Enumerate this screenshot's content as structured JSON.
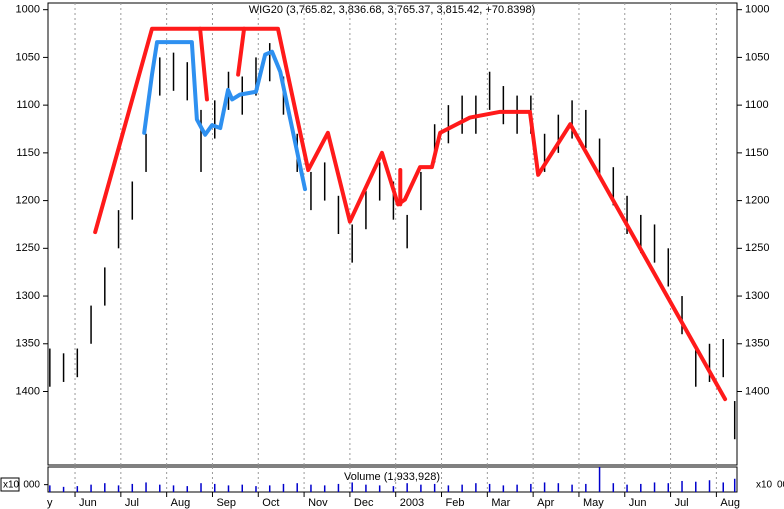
{
  "chart_data": {
    "type": "hlc-bars",
    "title": "WIG20 (3,765.82, 3,836.68, 3,765.37, 3,815.42, +70.8398)",
    "y_inverted": true,
    "xlim": [
      0.41,
      15.45
    ],
    "ylim": [
      993,
      1477
    ],
    "xticks": [
      {
        "value": 0,
        "label": "y"
      },
      {
        "value": 1,
        "label": "Jun"
      },
      {
        "value": 2,
        "label": "Jul"
      },
      {
        "value": 3,
        "label": "Aug"
      },
      {
        "value": 4,
        "label": "Sep"
      },
      {
        "value": 5,
        "label": "Oct"
      },
      {
        "value": 6,
        "label": "Nov"
      },
      {
        "value": 7,
        "label": "Dec"
      },
      {
        "value": 8,
        "label": "2003"
      },
      {
        "value": 9,
        "label": "Feb"
      },
      {
        "value": 10,
        "label": "Mar"
      },
      {
        "value": 11,
        "label": "Apr"
      },
      {
        "value": 12,
        "label": "May"
      },
      {
        "value": 13,
        "label": "Jun"
      },
      {
        "value": 14,
        "label": "Jul"
      },
      {
        "value": 15,
        "label": "Aug"
      }
    ],
    "yticks": [
      1000,
      1050,
      1100,
      1150,
      1200,
      1250,
      1300,
      1350,
      1400
    ],
    "grid": true,
    "bar_color": "#000000",
    "x": [
      0.45,
      0.75,
      1.05,
      1.35,
      1.65,
      1.95,
      2.25,
      2.55,
      2.85,
      3.15,
      3.45,
      3.75,
      4.05,
      4.35,
      4.65,
      4.95,
      5.25,
      5.55,
      5.85,
      6.15,
      6.45,
      6.75,
      7.05,
      7.35,
      7.65,
      7.95,
      8.25,
      8.55,
      8.85,
      9.15,
      9.45,
      9.75,
      10.05,
      10.35,
      10.65,
      10.95,
      11.25,
      11.55,
      11.85,
      12.15,
      12.45,
      12.75,
      13.05,
      13.35,
      13.65,
      13.95,
      14.25,
      14.55,
      14.85,
      15.15,
      15.4
    ],
    "high": [
      1395,
      1390,
      1385,
      1350,
      1310,
      1250,
      1220,
      1170,
      1090,
      1085,
      1095,
      1170,
      1135,
      1105,
      1110,
      1090,
      1075,
      1110,
      1170,
      1210,
      1200,
      1235,
      1265,
      1230,
      1200,
      1220,
      1250,
      1210,
      1160,
      1140,
      1130,
      1130,
      1105,
      1120,
      1130,
      1130,
      1170,
      1150,
      1135,
      1145,
      1175,
      1205,
      1235,
      1255,
      1265,
      1290,
      1340,
      1395,
      1390,
      1385,
      1450
    ],
    "low": [
      1355,
      1360,
      1355,
      1310,
      1270,
      1210,
      1180,
      1130,
      1050,
      1045,
      1055,
      1105,
      1095,
      1065,
      1070,
      1050,
      1035,
      1070,
      1130,
      1170,
      1160,
      1195,
      1225,
      1190,
      1160,
      1180,
      1215,
      1170,
      1120,
      1100,
      1090,
      1090,
      1065,
      1080,
      1090,
      1090,
      1130,
      1110,
      1095,
      1105,
      1135,
      1165,
      1195,
      1215,
      1225,
      1250,
      1300,
      1355,
      1350,
      1345,
      1410
    ],
    "overlays": [
      {
        "color": "#ff1a1a",
        "x": [
          1.44,
          2.68,
          5.43,
          6.09,
          6.52,
          7.0,
          7.7,
          8.05,
          8.2,
          8.53,
          8.79,
          8.97,
          9.62,
          10.28,
          10.93,
          11.11,
          11.81,
          15.19,
          null,
          3.73,
          3.88,
          null,
          4.69,
          4.56,
          null,
          8.1,
          8.1
        ],
        "values": [
          1233,
          1020,
          1020,
          1168,
          1129,
          1222,
          1150,
          1204,
          1199,
          1165,
          1165,
          1129,
          1113,
          1107,
          1107,
          1173,
          1120,
          1408,
          null,
          1020,
          1094,
          null,
          1020,
          1068,
          null,
          1168,
          1204
        ]
      },
      {
        "color": "#2e90f0",
        "x": [
          2.51,
          2.68,
          2.79,
          3.55,
          3.66,
          3.84,
          3.99,
          4.17,
          4.34,
          4.43,
          4.6,
          4.95,
          5.15,
          5.3,
          5.48,
          6.02
        ],
        "values": [
          1129,
          1068,
          1034,
          1034,
          1115,
          1131,
          1121,
          1124,
          1084,
          1094,
          1089,
          1086,
          1047,
          1044,
          1065,
          1188
        ]
      }
    ],
    "volume": {
      "title": "Volume (1,933,928)",
      "multiplier": "x10",
      "ylim": [
        0,
        3400
      ],
      "yticks": [
        {
          "value": 1000,
          "label": "000"
        }
      ],
      "color": "#0000cc",
      "values": [
        900,
        700,
        800,
        1000,
        1200,
        900,
        1100,
        1300,
        1000,
        900,
        800,
        1200,
        1100,
        900,
        1000,
        800,
        900,
        1100,
        1200,
        1000,
        900,
        1100,
        1300,
        1000,
        900,
        800,
        1200,
        1000,
        1100,
        900,
        1000,
        1200,
        1100,
        900,
        1000,
        1100,
        1300,
        1200,
        1000,
        1100,
        3400,
        1200,
        1000,
        1100,
        1300,
        1200,
        1500,
        1400,
        1600,
        1300,
        1800
      ]
    }
  }
}
